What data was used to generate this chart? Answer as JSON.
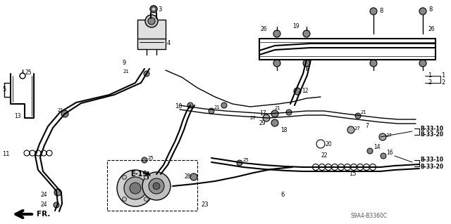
{
  "bg_color": "#ffffff",
  "diagram_code": "S9A4-B3360C",
  "label_e19": "E-19",
  "label_fr": "FR."
}
